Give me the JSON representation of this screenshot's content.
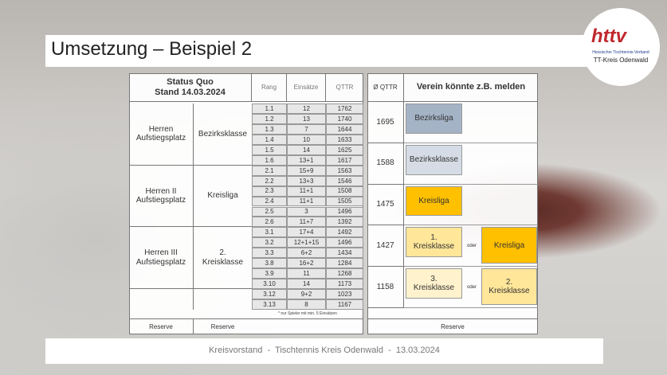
{
  "title": "Umsetzung – Beispiel 2",
  "logo": {
    "brand": "httv",
    "line1": "Hessischer Tischtennis-Verband",
    "line2": "TT-Kreis  Odenwald"
  },
  "left_table": {
    "status": [
      "Status Quo",
      "Stand 14.03.2024"
    ],
    "columns": [
      "Rang",
      "Einsätze",
      "QTTR"
    ],
    "groups": [
      {
        "team": [
          "Herren",
          "Aufstiegsplatz"
        ],
        "league": [
          "Bezirksklasse"
        ],
        "rows": [
          [
            "1.1",
            "12",
            "1762"
          ],
          [
            "1.2",
            "13",
            "1740"
          ],
          [
            "1.3",
            "7",
            "1644"
          ],
          [
            "1.4",
            "10",
            "1633"
          ],
          [
            "1.5",
            "14",
            "1625"
          ],
          [
            "1.6",
            "13+1",
            "1617"
          ]
        ]
      },
      {
        "team": [
          "Herren II",
          "Aufstiegsplatz"
        ],
        "league": [
          "Kreisliga"
        ],
        "rows": [
          [
            "2.1",
            "15+9",
            "1563"
          ],
          [
            "2.2",
            "13+3",
            "1546"
          ],
          [
            "2.3",
            "11+1",
            "1508"
          ],
          [
            "2.4",
            "11+1",
            "1505"
          ],
          [
            "2.5",
            "3",
            "1496"
          ],
          [
            "2.6",
            "11+7",
            "1392"
          ]
        ]
      },
      {
        "team": [
          "Herren III",
          "Aufstiegsplatz"
        ],
        "league": [
          "2.",
          "Kreisklasse"
        ],
        "rows": [
          [
            "3.1",
            "17+4",
            "1492"
          ],
          [
            "3.2",
            "12+1+15",
            "1496"
          ],
          [
            "3.3",
            "6+2",
            "1434"
          ],
          [
            "3.8",
            "16+2",
            "1284"
          ],
          [
            "3.9",
            "11",
            "1268"
          ],
          [
            "3.10",
            "14",
            "1173"
          ]
        ]
      },
      {
        "team": [],
        "league": [],
        "rows": [
          [
            "3.12",
            "9+2",
            "1023"
          ],
          [
            "3.13",
            "8",
            "1167"
          ]
        ]
      }
    ],
    "footnote": "* nur Spieler mit min. 5 Einsätzen",
    "reserve": [
      "Reserve",
      "Reserve"
    ]
  },
  "right_table": {
    "columns": [
      "Ø QTTR",
      "Verein könnte z.B. melden"
    ],
    "rows": [
      {
        "qttr": "1695",
        "main": [
          "Bezirksliga"
        ],
        "main_color": "#a5b3c6"
      },
      {
        "qttr": "1588",
        "main": [
          "Bezirksklasse"
        ],
        "main_color": "#d5dce6"
      },
      {
        "qttr": "1475",
        "main": [
          "Kreisliga"
        ],
        "main_color": "#ffc000"
      },
      {
        "qttr": "1427",
        "main": [
          "1.",
          "Kreisklasse"
        ],
        "main_color": "#ffe699",
        "or": "oder",
        "alt": [
          "Kreisliga"
        ],
        "alt_color": "#ffc000"
      },
      {
        "qttr": "1158",
        "main": [
          "3.",
          "Kreisklasse"
        ],
        "main_color": "#fff2cc",
        "or": "oder",
        "alt": [
          "2.",
          "Kreisklasse"
        ],
        "alt_color": "#ffe699"
      }
    ],
    "reserve": "Reserve"
  },
  "footer": "Kreisvorstand  -  Tischtennis Kreis Odenwald  -  13.03.2024"
}
